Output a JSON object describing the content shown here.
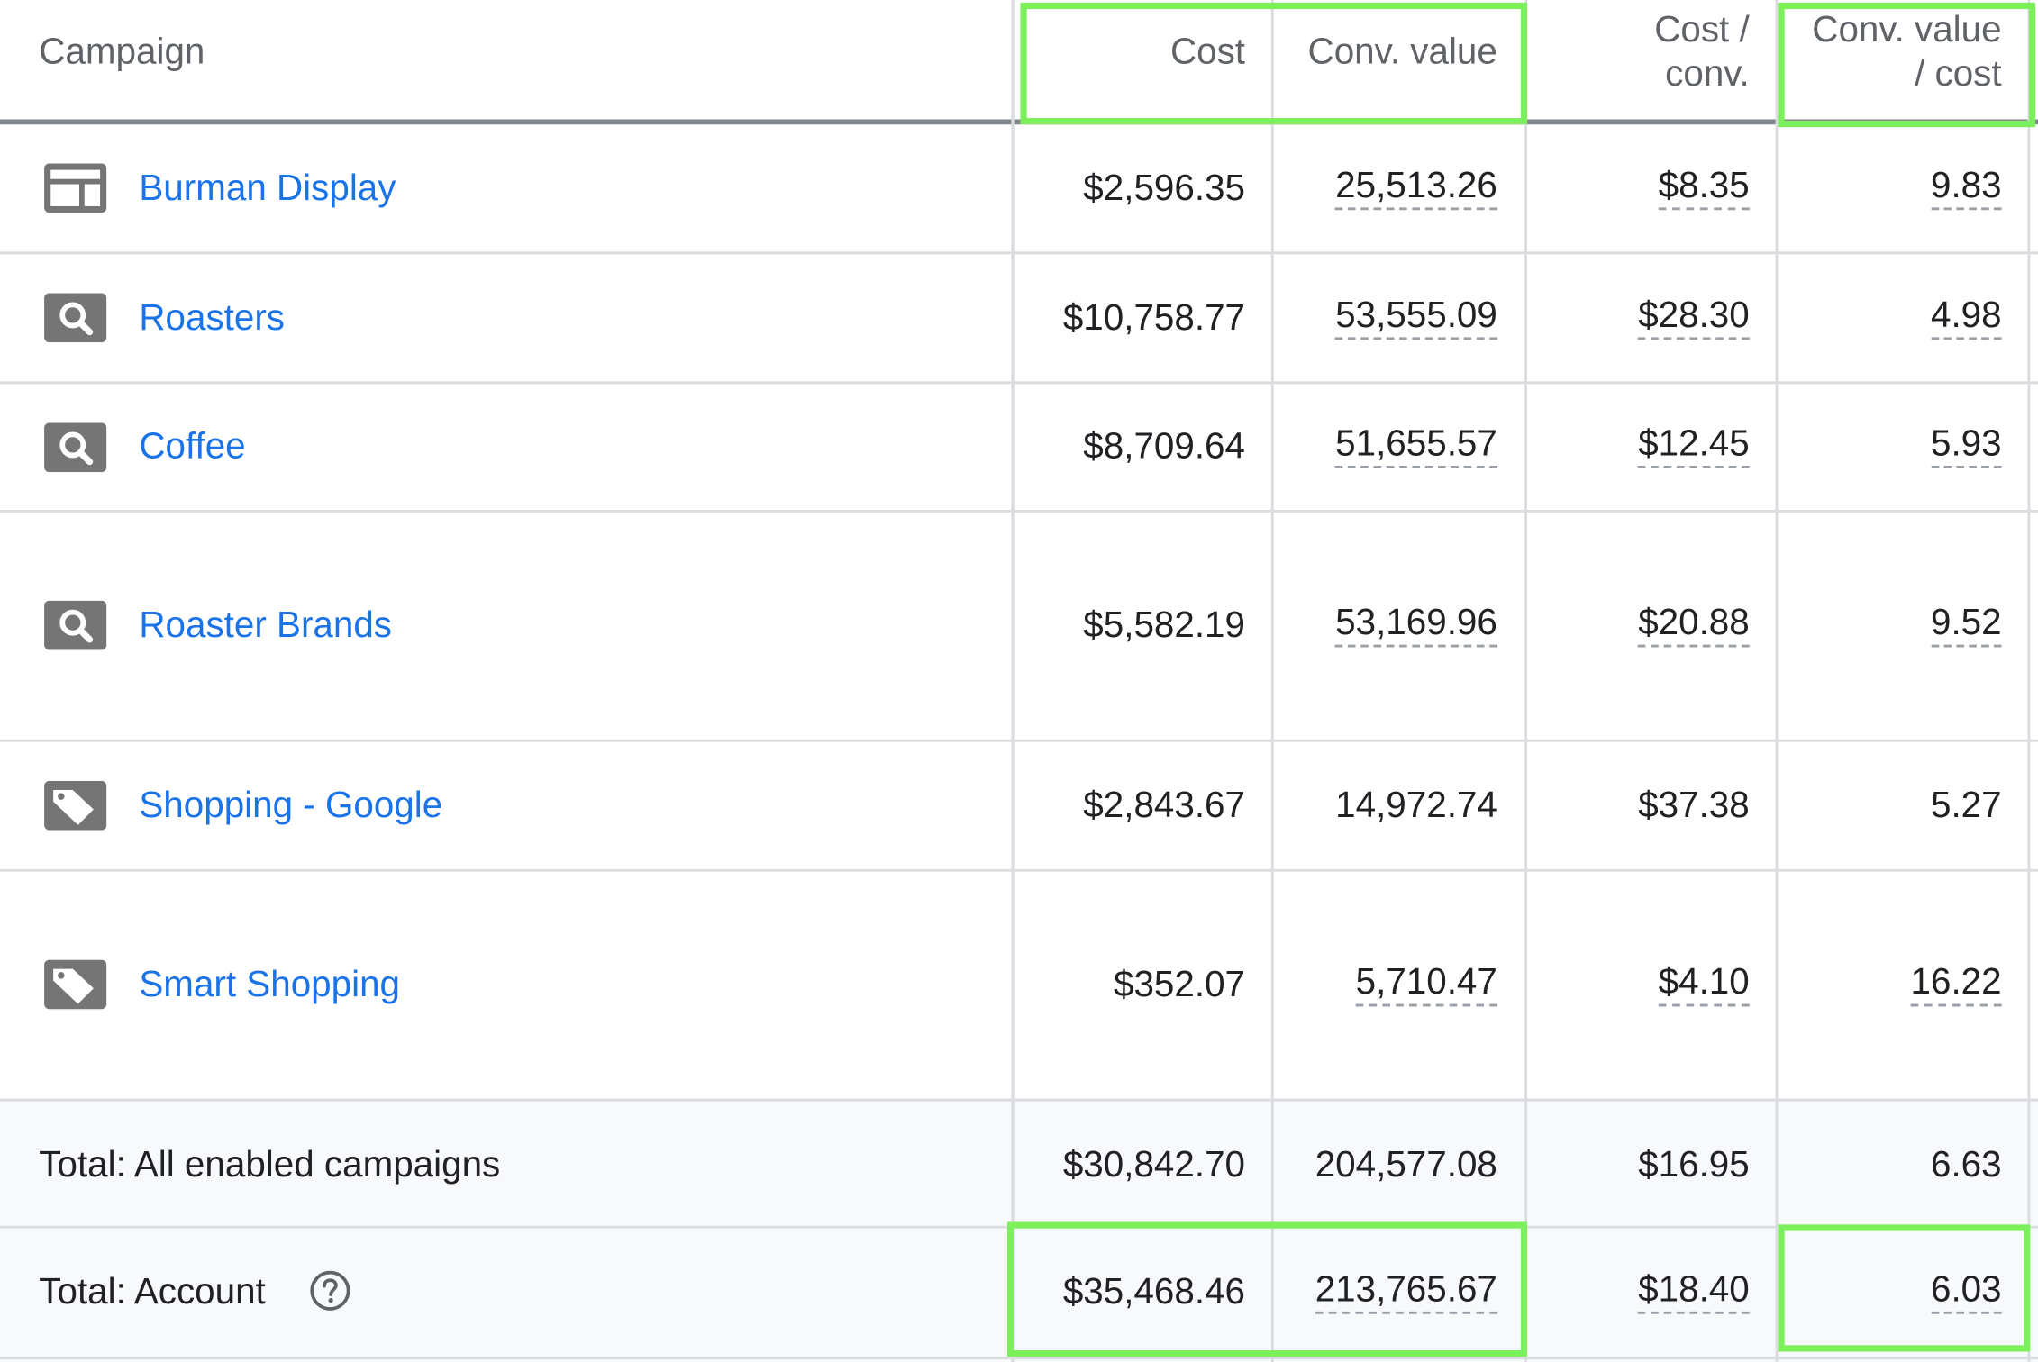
{
  "table": {
    "headers": {
      "campaign": "Campaign",
      "cost": "Cost",
      "conv_value": "Conv. value",
      "cost_per_conv_l1": "Cost /",
      "cost_per_conv_l2": "conv.",
      "value_per_cost_l1": "Conv. value",
      "value_per_cost_l2": "/ cost"
    },
    "rows": [
      {
        "icon": "display-campaign-icon",
        "name": "Burman Display",
        "cost": "$2,596.35",
        "conv_value": "25,513.26",
        "cost_per_conv": "$8.35",
        "value_per_cost": "9.83"
      },
      {
        "icon": "search-campaign-icon",
        "name": "Roasters",
        "cost": "$10,758.77",
        "conv_value": "53,555.09",
        "cost_per_conv": "$28.30",
        "value_per_cost": "4.98"
      },
      {
        "icon": "search-campaign-icon",
        "name": "Coffee",
        "cost": "$8,709.64",
        "conv_value": "51,655.57",
        "cost_per_conv": "$12.45",
        "value_per_cost": "5.93"
      },
      {
        "icon": "search-campaign-icon",
        "name": "Roaster Brands",
        "cost": "$5,582.19",
        "conv_value": "53,169.96",
        "cost_per_conv": "$20.88",
        "value_per_cost": "9.52"
      },
      {
        "icon": "shopping-tag-icon",
        "name": "Shopping - Google",
        "cost": "$2,843.67",
        "conv_value": "14,972.74",
        "cost_per_conv": "$37.38",
        "value_per_cost": "5.27"
      },
      {
        "icon": "shopping-tag-icon",
        "name": "Smart Shopping",
        "cost": "$352.07",
        "conv_value": "5,710.47",
        "cost_per_conv": "$4.10",
        "value_per_cost": "16.22"
      }
    ],
    "totals": [
      {
        "label": "Total: All enabled campaigns",
        "cost": "$30,842.70",
        "conv_value": "204,577.08",
        "cost_per_conv": "$16.95",
        "value_per_cost": "6.63"
      },
      {
        "label": "Total: Account",
        "cost": "$35,468.46",
        "conv_value": "213,765.67",
        "cost_per_conv": "$18.40",
        "value_per_cost": "6.03",
        "help_icon": "help-circle-icon"
      }
    ]
  },
  "colors": {
    "link": "#1a73e8",
    "highlight": "#7cf05a",
    "icon_gray": "#757575",
    "grid": "#dadce0",
    "total_bg": "#f8f9fa"
  }
}
